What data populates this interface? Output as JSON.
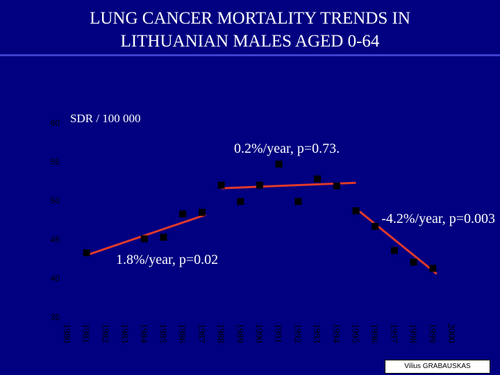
{
  "header": {
    "title": "LUNG CANCER MORTALITY  TRENDS IN\nLITHUANIAN MALES AGED 0-64"
  },
  "footer": {
    "credit": "Vilius GRABAUSKAS"
  },
  "colors": {
    "background": "#000080",
    "text": "#ffffff",
    "marker": "#000000",
    "trend": "#e03a2a",
    "tick_label": "#000000"
  },
  "chart_data": {
    "type": "scatter",
    "title": "LUNG CANCER MORTALITY  TRENDS IN LITHUANIAN MALES AGED 0-64",
    "ylabel": "SDR / 100 000",
    "xlabel": "",
    "ylim": [
      35,
      60
    ],
    "yticks": [
      "60",
      "55",
      "50",
      "45",
      "40",
      "35"
    ],
    "xlim": [
      1980,
      2000
    ],
    "xticks": [
      "1980",
      "1981",
      "1982",
      "1983",
      "1984",
      "1985",
      "1986",
      "1987",
      "1988",
      "1989",
      "1990",
      "1991",
      "1992",
      "1993",
      "1994",
      "1995",
      "1996",
      "1997",
      "1998",
      "1999",
      "2000"
    ],
    "grid": false,
    "series": [
      {
        "name": "SDR",
        "points": [
          {
            "x": 1981,
            "y": 43.3
          },
          {
            "x": 1984,
            "y": 45.1
          },
          {
            "x": 1985,
            "y": 45.3
          },
          {
            "x": 1986,
            "y": 48.3
          },
          {
            "x": 1987,
            "y": 48.5
          },
          {
            "x": 1988,
            "y": 52.0
          },
          {
            "x": 1989,
            "y": 49.9
          },
          {
            "x": 1990,
            "y": 52.0
          },
          {
            "x": 1991,
            "y": 54.7
          },
          {
            "x": 1992,
            "y": 49.9
          },
          {
            "x": 1993,
            "y": 52.8
          },
          {
            "x": 1994,
            "y": 51.9
          },
          {
            "x": 1995,
            "y": 48.7
          },
          {
            "x": 1996,
            "y": 46.7
          },
          {
            "x": 1997,
            "y": 43.6
          },
          {
            "x": 1998,
            "y": 42.1
          },
          {
            "x": 1999,
            "y": 41.3
          }
        ]
      }
    ],
    "trends": [
      {
        "label": "1.8%/year, p=0.02",
        "x1": 1981,
        "y1": 43.0,
        "x2": 1987.2,
        "y2": 48.2
      },
      {
        "label": "0.2%/year, p=0.73.",
        "x1": 1988,
        "y1": 51.6,
        "x2": 1995,
        "y2": 52.3
      },
      {
        "label": "-4.2%/year, p=0.003",
        "x1": 1995.2,
        "y1": 48.6,
        "x2": 1999.2,
        "y2": 40.6
      }
    ]
  }
}
